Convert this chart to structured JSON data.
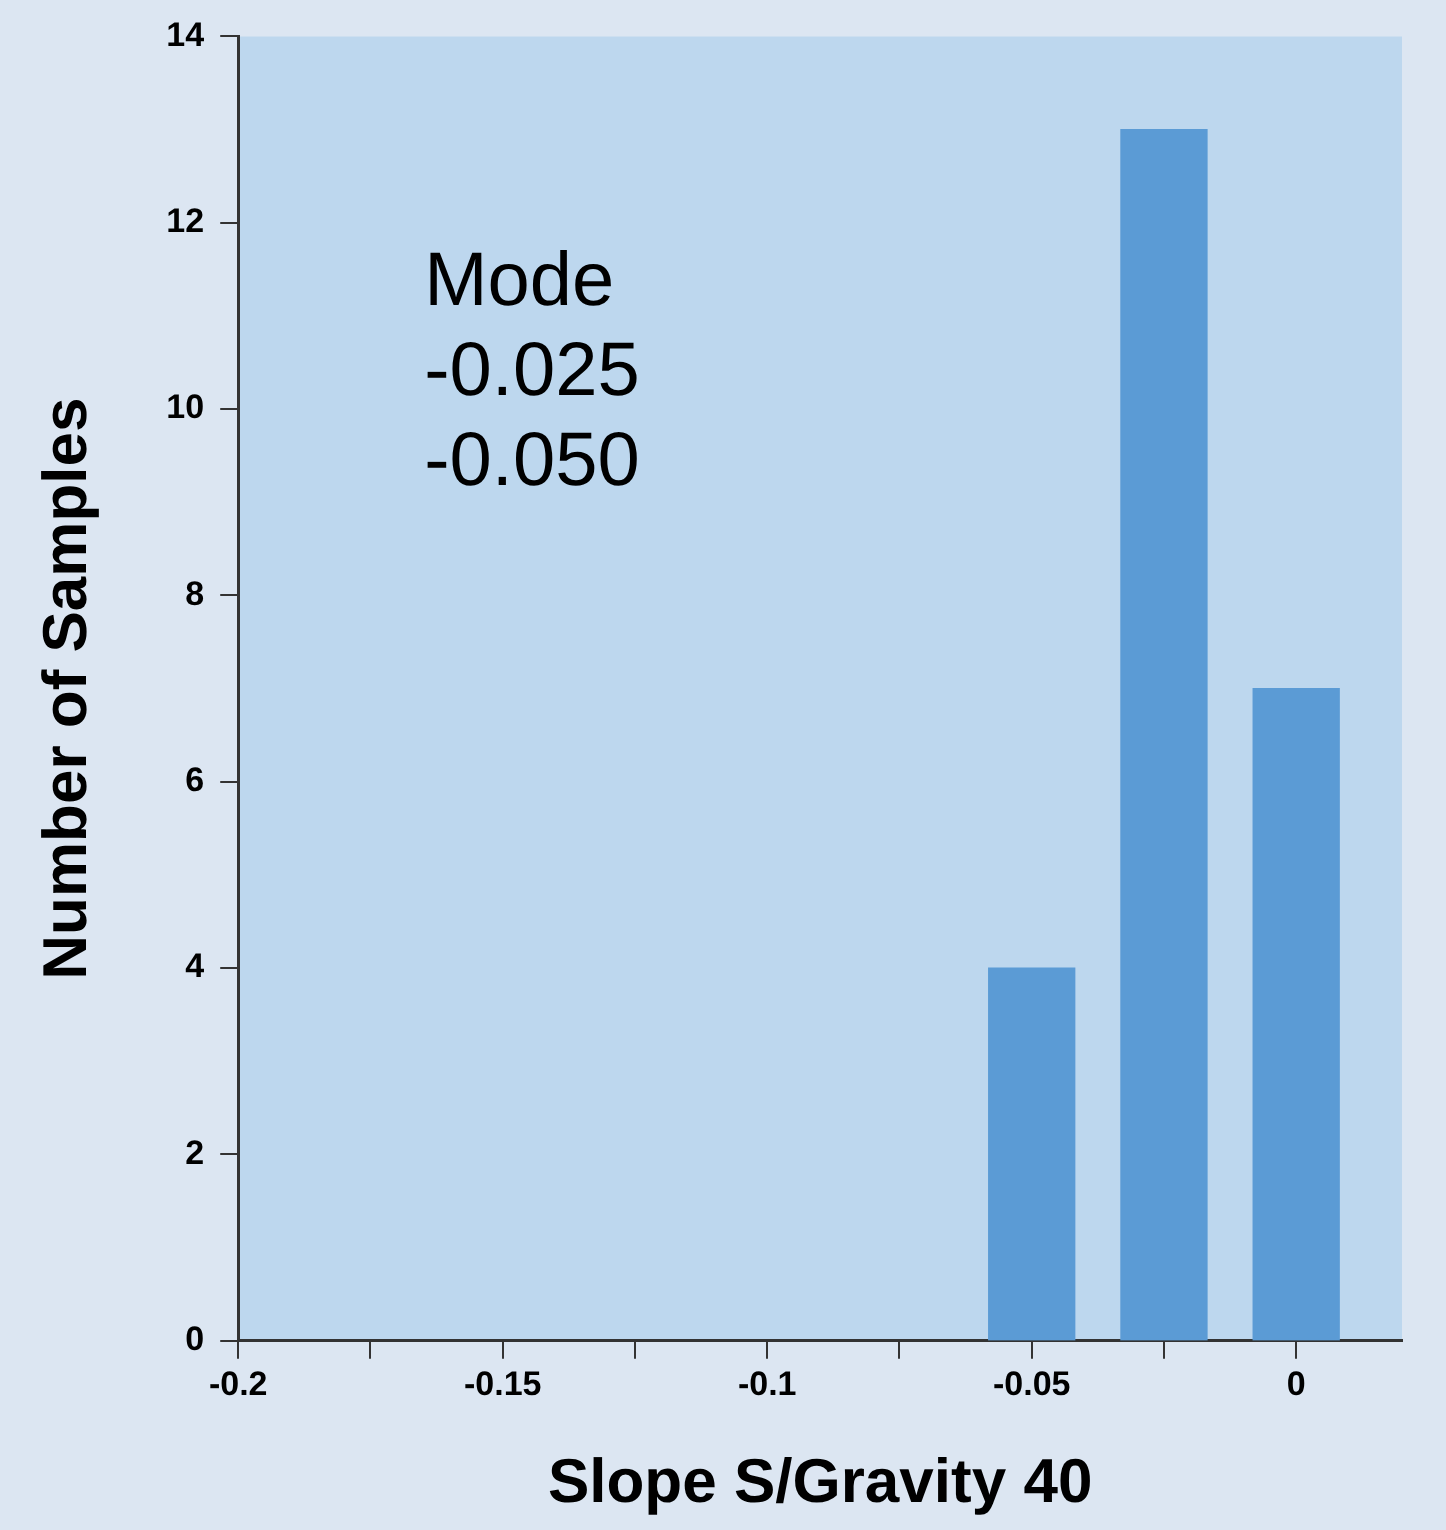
{
  "chart_data": {
    "type": "bar",
    "xlabel": "Slope S/Gravity 40",
    "ylabel": "Number of Samples",
    "x": [
      -0.05,
      -0.025,
      0
    ],
    "values": [
      4,
      13,
      7
    ],
    "color": "#5b9bd5",
    "xlim": [
      -0.2,
      0.02
    ],
    "xticks": [
      -0.2,
      {
        "value": -0.175,
        "label": null
      },
      -0.15,
      {
        "value": -0.125,
        "label": null
      },
      -0.1,
      {
        "value": -0.075,
        "label": null
      },
      -0.05,
      {
        "value": -0.025,
        "label": null
      },
      0
    ],
    "ylim": [
      0,
      14
    ],
    "yticks": [
      0,
      2,
      4,
      6,
      8,
      10,
      12,
      14
    ],
    "grid": false,
    "legend": false,
    "annotations": [
      "Mode",
      "-0.025",
      "-0.050"
    ]
  }
}
